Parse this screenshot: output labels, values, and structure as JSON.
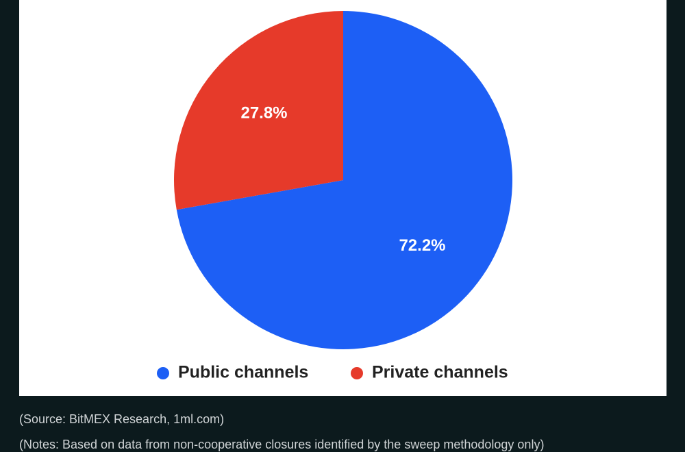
{
  "chart_data": {
    "type": "pie",
    "categories": [
      "Public channels",
      "Private channels"
    ],
    "values": [
      72.2,
      27.8
    ],
    "value_labels": [
      "72.2%",
      "27.8%"
    ],
    "colors": [
      "#1d5ff5",
      "#e63a2a"
    ],
    "legend": "bottom"
  },
  "source": "(Source: BitMEX Research, 1ml.com)",
  "notes": "(Notes: Based on data from non-cooperative closures identified by the sweep methodology only)"
}
